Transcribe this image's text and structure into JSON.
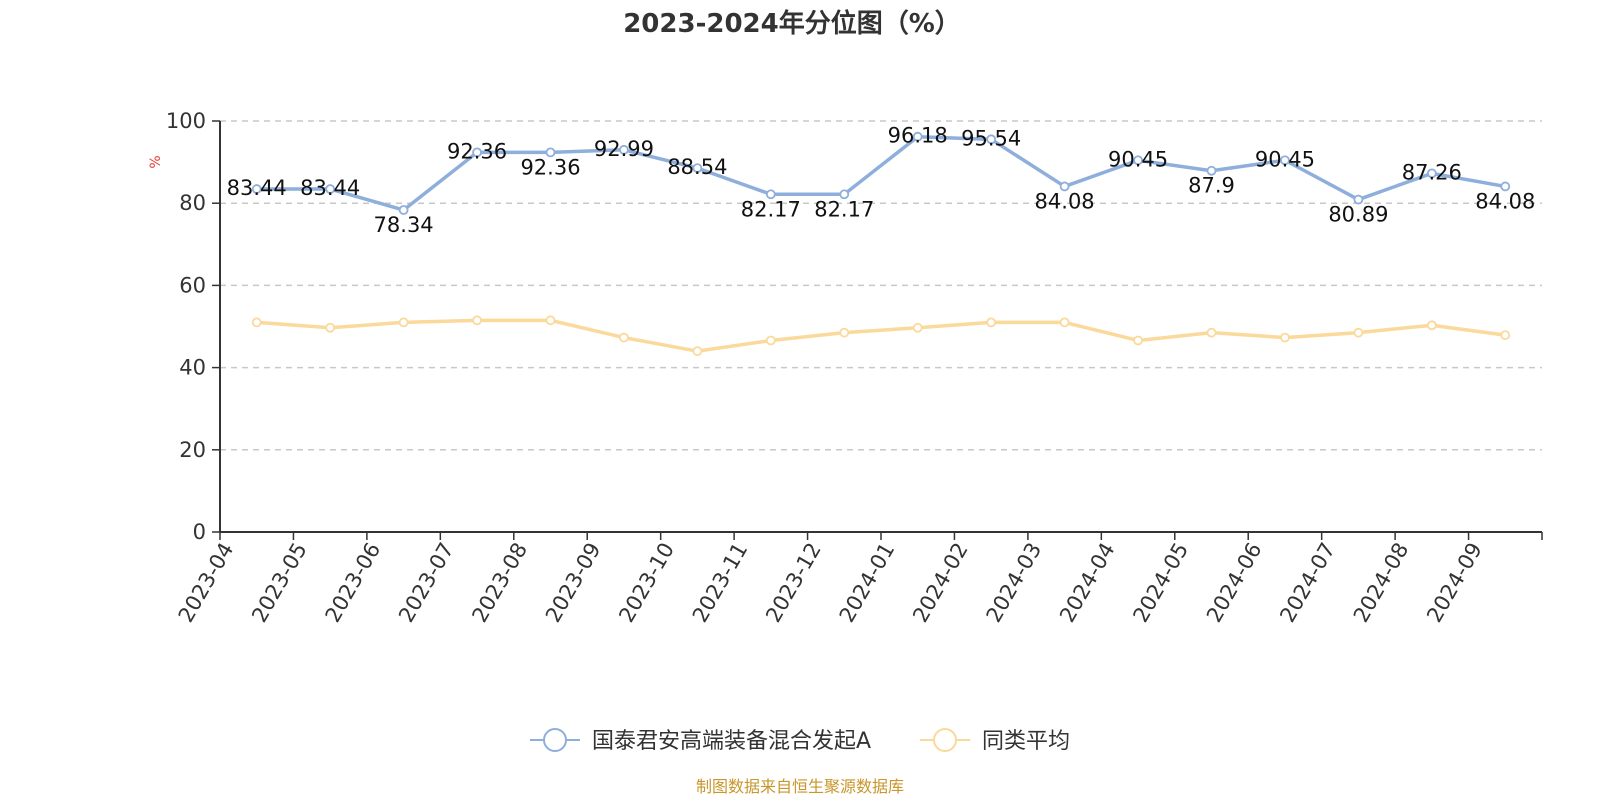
{
  "chart_data": {
    "type": "line",
    "title": "2023-2024年分位图（%）",
    "ylabel": "%",
    "ylim": [
      0,
      100
    ],
    "yticks": [
      "0",
      "20",
      "40",
      "60",
      "80",
      "100"
    ],
    "grid": true,
    "legend_position": "bottom",
    "categories": [
      "2023-04",
      "2023-05",
      "2023-06",
      "2023-07",
      "2023-08",
      "2023-09",
      "2023-10",
      "2023-11",
      "2023-12",
      "2024-01",
      "2024-02",
      "2024-03",
      "2024-04",
      "2024-05",
      "2024-06",
      "2024-07",
      "2024-08",
      "2024-09"
    ],
    "series": [
      {
        "name": "国泰君安高端装备混合发起A",
        "color": "#8eaedb",
        "values": [
          83.44,
          83.44,
          78.34,
          92.36,
          92.36,
          92.99,
          88.54,
          82.17,
          82.17,
          96.18,
          95.54,
          84.08,
          90.45,
          87.9,
          90.45,
          80.89,
          87.26,
          84.08
        ],
        "labels": [
          "83.44",
          "83.44",
          "78.34",
          "92.36",
          "92.36",
          "92.99",
          "88.54",
          "82.17",
          "82.17",
          "96.18",
          "95.54",
          "84.08",
          "90.45",
          "87.9",
          "90.45",
          "80.89",
          "87.26",
          "84.08"
        ]
      },
      {
        "name": "同类平均",
        "color": "#fad99b",
        "values": [
          51,
          49.7,
          51,
          51.5,
          51.5,
          47.3,
          44,
          46.6,
          48.5,
          49.7,
          51,
          51,
          46.6,
          48.5,
          47.3,
          48.5,
          50.3,
          47.9
        ]
      }
    ]
  },
  "source": "制图数据来自恒生聚源数据库"
}
